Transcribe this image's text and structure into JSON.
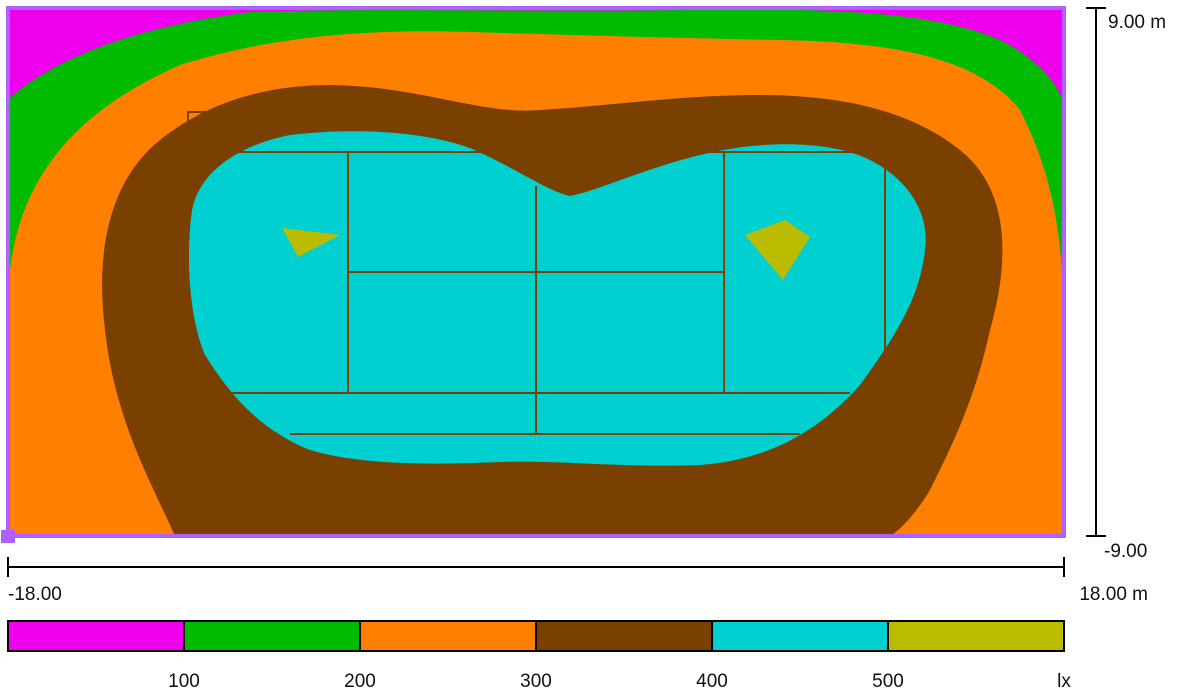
{
  "chart_data": {
    "type": "heatmap",
    "title": "",
    "x_axis": {
      "min": -18.0,
      "max": 18.0,
      "min_label": "-18.00",
      "max_label": "18.00 m"
    },
    "y_axis": {
      "min": -9.0,
      "max": 9.0,
      "min_label": "-9.00",
      "max_label": "9.00 m"
    },
    "unit": "lx",
    "legend": {
      "placement": "bottom",
      "bands": [
        {
          "range": [
            0,
            100
          ],
          "color": "#ee00ee"
        },
        {
          "range": [
            100,
            200
          ],
          "color": "#00bb00"
        },
        {
          "range": [
            200,
            300
          ],
          "color": "#ff8000"
        },
        {
          "range": [
            300,
            400
          ],
          "color": "#7a4000"
        },
        {
          "range": [
            400,
            500
          ],
          "color": "#00d0d0"
        },
        {
          "range": [
            500,
            600
          ],
          "color": "#bbbb00"
        }
      ],
      "tick_labels": [
        "100",
        "200",
        "300",
        "400",
        "500"
      ],
      "unit_label": "lx"
    },
    "frame_color": "#b060ff",
    "court_line_color": "#7a4000"
  }
}
